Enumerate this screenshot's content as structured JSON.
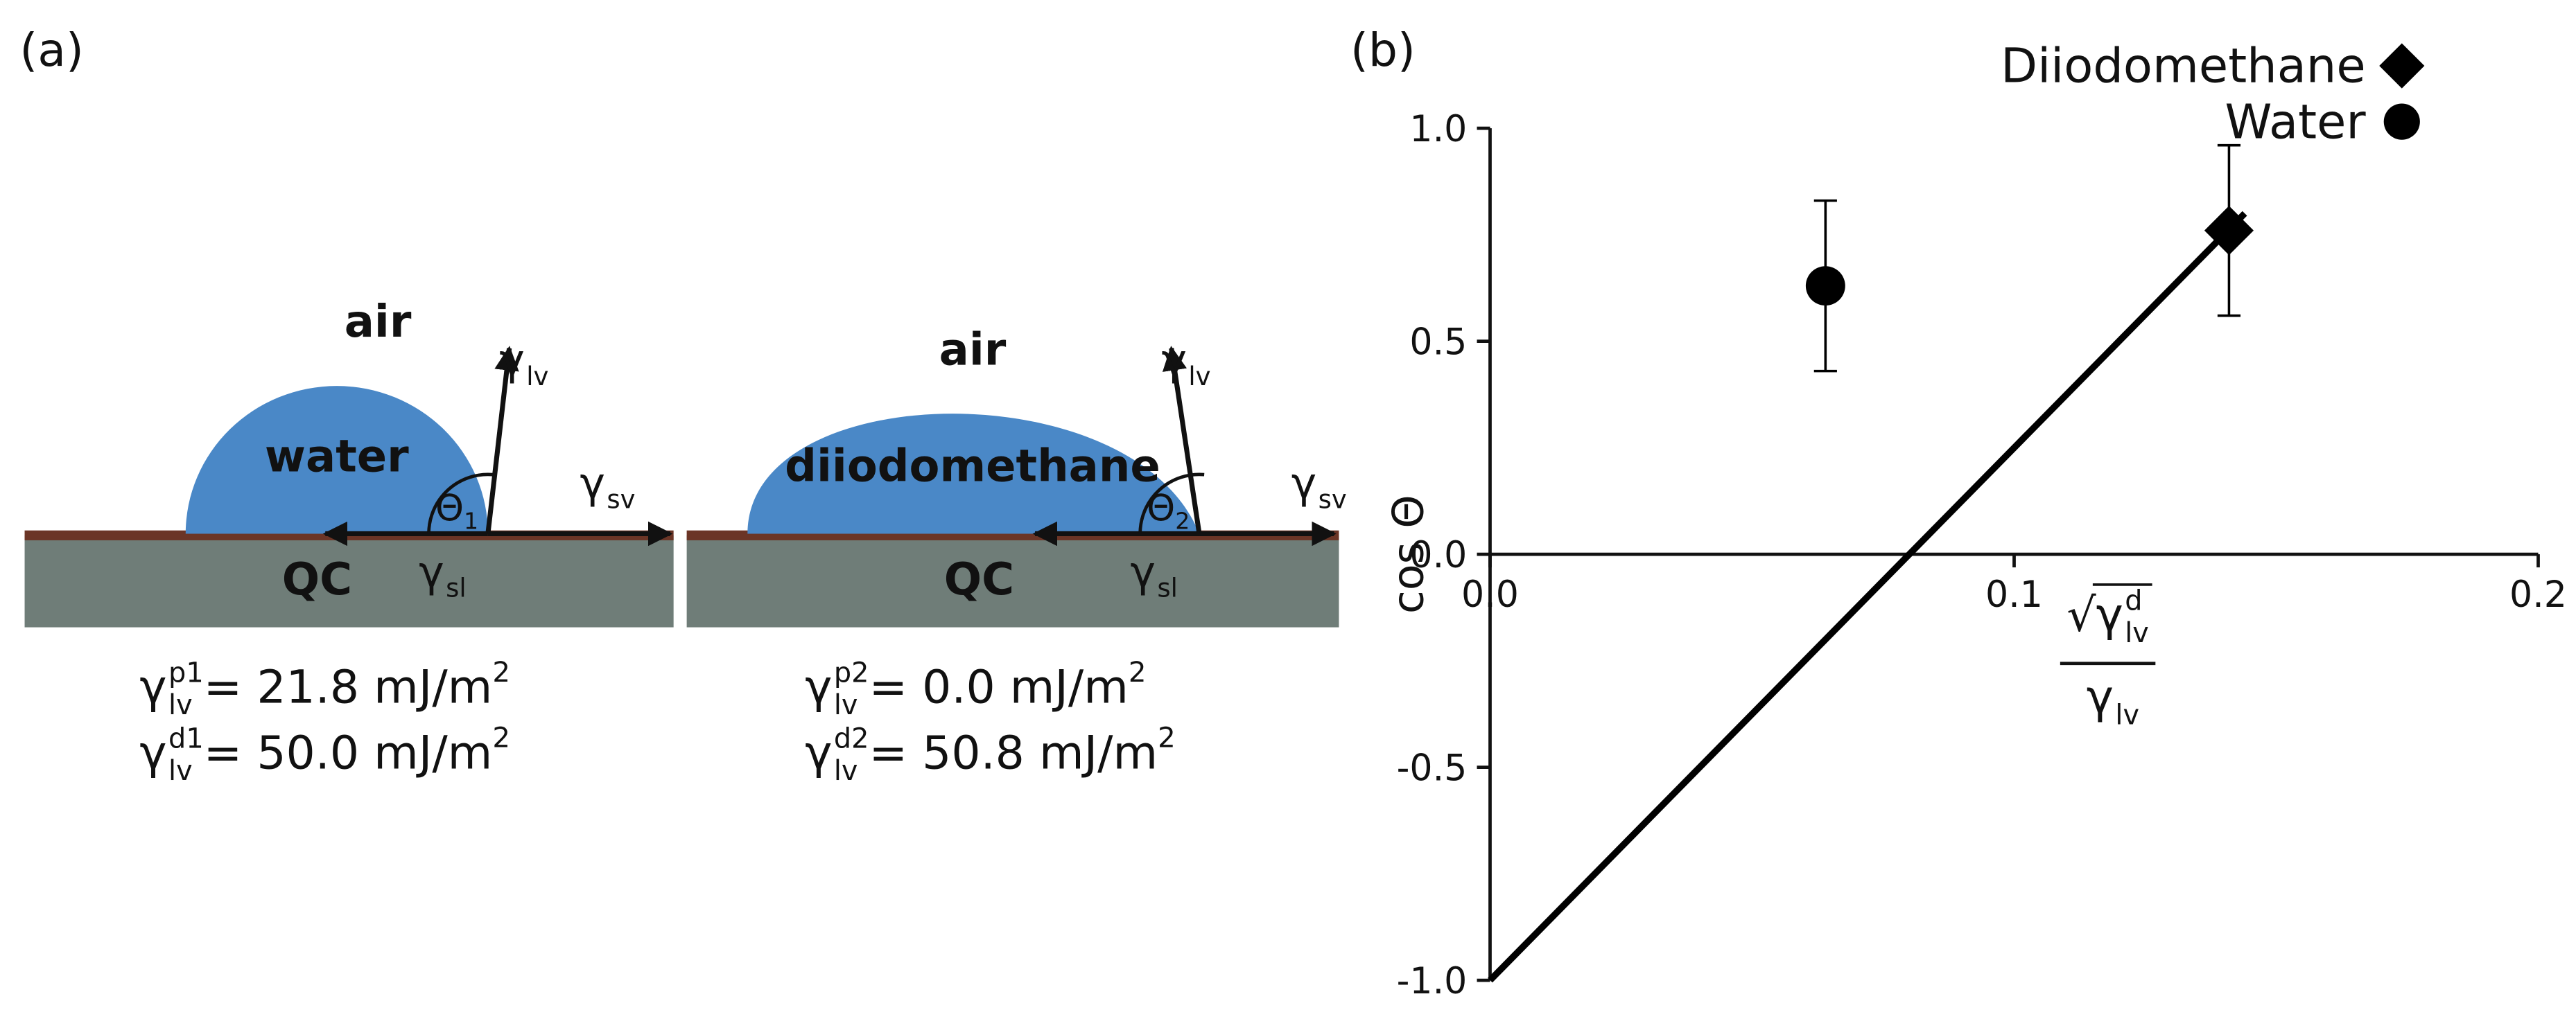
{
  "panel_a": {
    "label": "(a)",
    "diagrams": [
      {
        "ambient": "air",
        "liquid": "water",
        "substrate": "QC",
        "gamma": "γ",
        "lv": "lv",
        "sv": "sv",
        "sl": "sl",
        "theta": "Θ",
        "theta_index": "1",
        "properties": [
          {
            "sup": "p1",
            "text": "= 21.8 mJ/m",
            "exp": "2"
          },
          {
            "sup": "d1",
            "text": "= 50.0 mJ/m",
            "exp": "2"
          }
        ]
      },
      {
        "ambient": "air",
        "liquid": "diiodomethane",
        "substrate": "QC",
        "gamma": "γ",
        "lv": "lv",
        "sv": "sv",
        "sl": "sl",
        "theta": "Θ",
        "theta_index": "2",
        "properties": [
          {
            "sup": "p2",
            "text": "= 0.0 mJ/m",
            "exp": "2"
          },
          {
            "sup": "d2",
            "text": "= 50.8 mJ/m",
            "exp": "2"
          }
        ]
      }
    ]
  },
  "chart_data": {
    "type": "scatter",
    "label": "(b)",
    "ylabel": "cos Θ",
    "xlabel": {
      "radical": "√",
      "symbol": "γ",
      "sup": "d",
      "sub": "lv"
    },
    "xlim": [
      0,
      0.2
    ],
    "ylim": [
      -1,
      1
    ],
    "xticks": [
      {
        "value": 0,
        "label": "0.0"
      },
      0.1,
      0.2
    ],
    "yticks": [
      {
        "value": -1,
        "label": "-1.0"
      },
      -0.5,
      {
        "value": 0,
        "label": "0.0"
      },
      0.5,
      {
        "value": 1,
        "label": "1.0"
      }
    ],
    "legend": "top-right",
    "series": [
      {
        "name": "Diiodomethane",
        "marker": "diamond",
        "color": "#000000",
        "x": [
          0.141
        ],
        "values": [
          0.76
        ],
        "errors": [
          0.2
        ]
      },
      {
        "name": "Water",
        "marker": "circle",
        "color": "#000000",
        "x": [
          0.064
        ],
        "values": [
          0.63
        ],
        "errors": [
          0.2
        ]
      }
    ],
    "fit_line": {
      "color": "#000000",
      "x": [
        0,
        0.144
      ],
      "values": [
        -1.0,
        0.8
      ]
    }
  }
}
